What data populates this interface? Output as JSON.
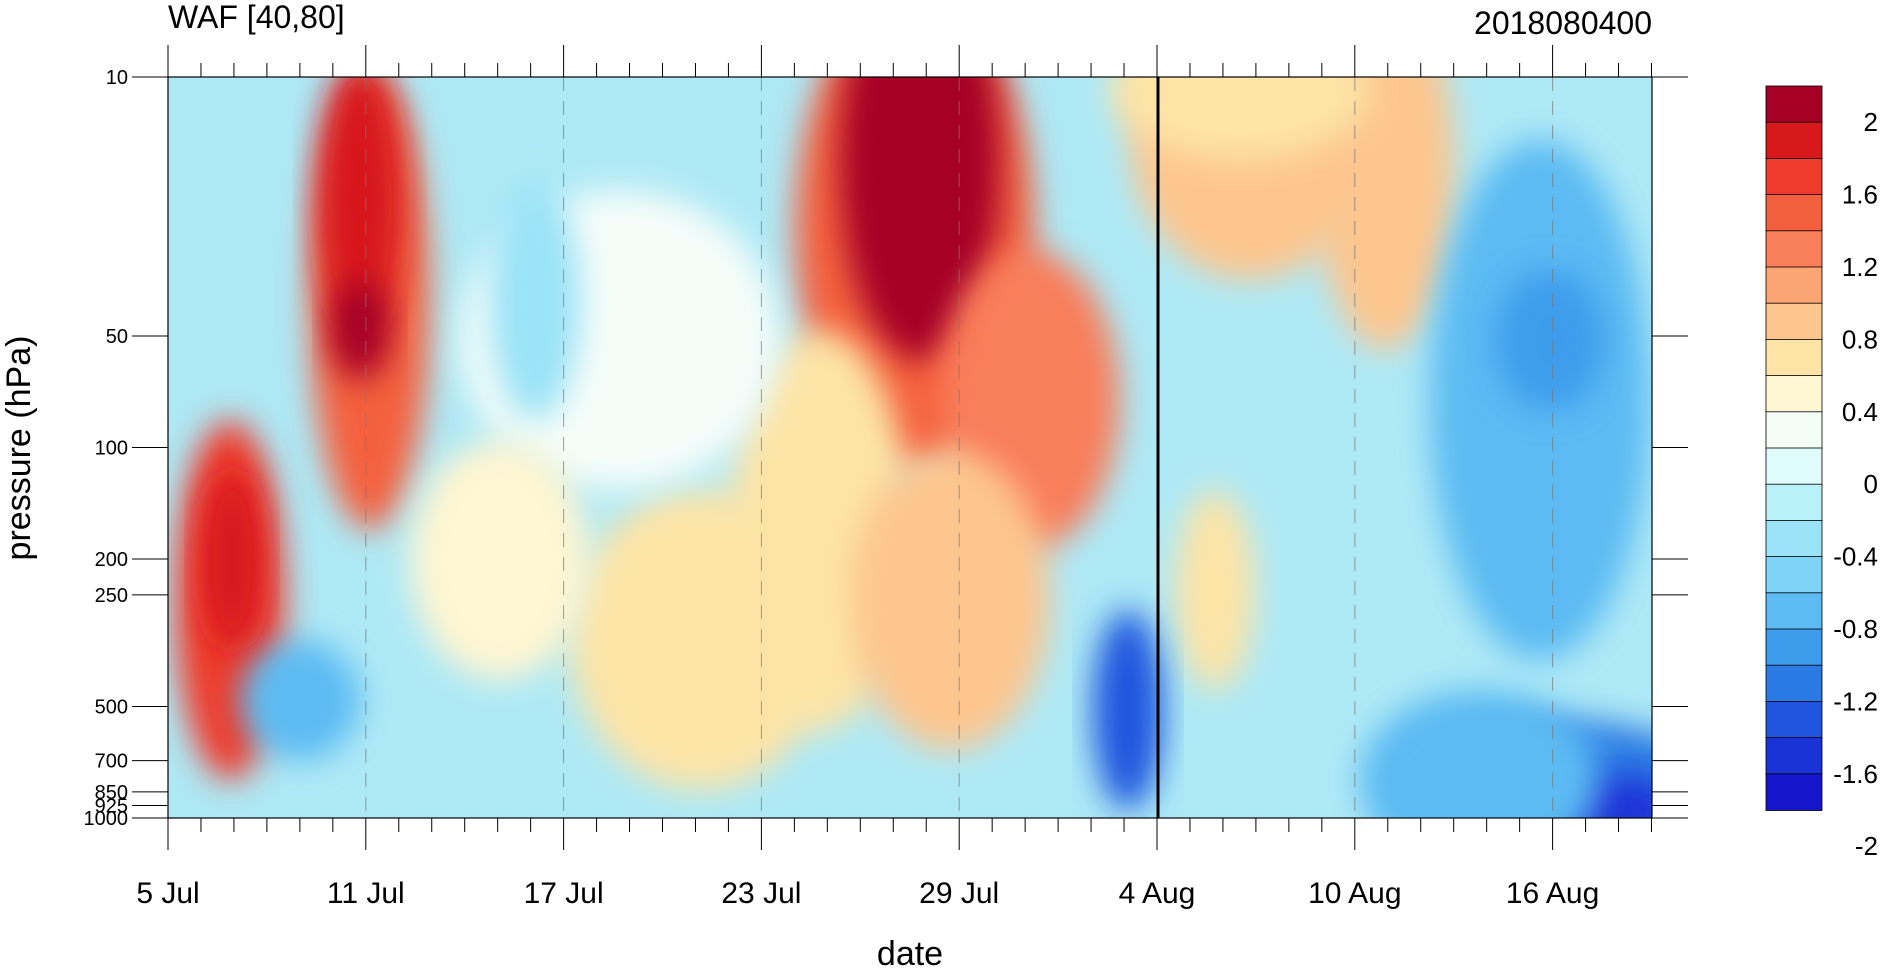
{
  "chart_data": {
    "type": "heatmap",
    "title": "WAF [40,80]",
    "subtitle": "2018080400",
    "xlabel": "date",
    "ylabel": "pressure (hPa)",
    "x_tick_labels": [
      "5 Jul",
      "11 Jul",
      "17 Jul",
      "23 Jul",
      "29 Jul",
      "4 Aug",
      "10 Aug",
      "16 Aug"
    ],
    "y_ticks": [
      10,
      50,
      100,
      200,
      250,
      500,
      700,
      850,
      925,
      1000
    ],
    "y_tick_labels": [
      "10",
      "50",
      "100",
      "200",
      "250",
      "500",
      "700",
      "850",
      "925",
      "1000"
    ],
    "y_scale": "log",
    "ylim": [
      1000,
      10
    ],
    "current_date_marker": "4 Aug",
    "colorbar": {
      "labels": [
        "2",
        "1.6",
        "1.2",
        "0.8",
        "0.4",
        "0",
        "-0.4",
        "-0.8",
        "-1.2",
        "-1.6",
        "-2"
      ],
      "colors": [
        "#a50026",
        "#d7191c",
        "#ef3b2c",
        "#f4603e",
        "#f97e5a",
        "#fca574",
        "#fdc68e",
        "#fde4a6",
        "#fff6d2",
        "#f5fdf9",
        "#e0fbfc",
        "#b8f1f8",
        "#9ae3f7",
        "#7dd4f6",
        "#5cbbf3",
        "#3d9cec",
        "#2a7ae4",
        "#1f55de",
        "#1a33d6",
        "#1515cc"
      ]
    },
    "grid": "dashed verticals at labelled dates"
  }
}
